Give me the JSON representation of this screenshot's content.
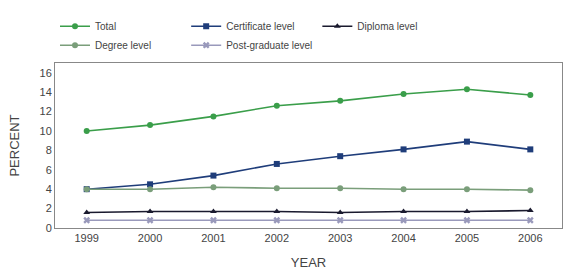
{
  "chart_data": {
    "type": "line",
    "xlabel": "YEAR",
    "ylabel": "PERCENT",
    "x": [
      1999,
      2000,
      2001,
      2002,
      2003,
      2004,
      2005,
      2006
    ],
    "series": [
      {
        "name": "Total",
        "color": "#3a9e4a",
        "marker": "circle",
        "values": [
          10.0,
          10.6,
          11.5,
          12.6,
          13.1,
          13.8,
          14.3,
          13.7
        ]
      },
      {
        "name": "Certificate level",
        "color": "#1f3d7a",
        "marker": "square",
        "values": [
          4.0,
          4.5,
          5.4,
          6.6,
          7.4,
          8.1,
          8.9,
          8.1
        ]
      },
      {
        "name": "Diploma level",
        "color": "#1a1a2e",
        "marker": "triangle",
        "values": [
          1.6,
          1.7,
          1.7,
          1.7,
          1.6,
          1.7,
          1.7,
          1.8
        ]
      },
      {
        "name": "Degree level",
        "color": "#7a9e7a",
        "marker": "circle",
        "values": [
          4.0,
          4.0,
          4.2,
          4.1,
          4.1,
          4.0,
          4.0,
          3.9
        ]
      },
      {
        "name": "Post-graduate level",
        "color": "#9999bb",
        "marker": "x",
        "values": [
          0.8,
          0.8,
          0.8,
          0.8,
          0.8,
          0.8,
          0.8,
          0.8
        ]
      }
    ],
    "xlim": [
      1998.5,
      2006.5
    ],
    "xticks": [
      1999,
      2000,
      2001,
      2002,
      2003,
      2004,
      2005,
      2006
    ],
    "ylim": [
      0,
      17
    ],
    "yticks": [
      0,
      2,
      4,
      6,
      8,
      10,
      12,
      14,
      16
    ],
    "legend": "upper left",
    "grid": false
  }
}
